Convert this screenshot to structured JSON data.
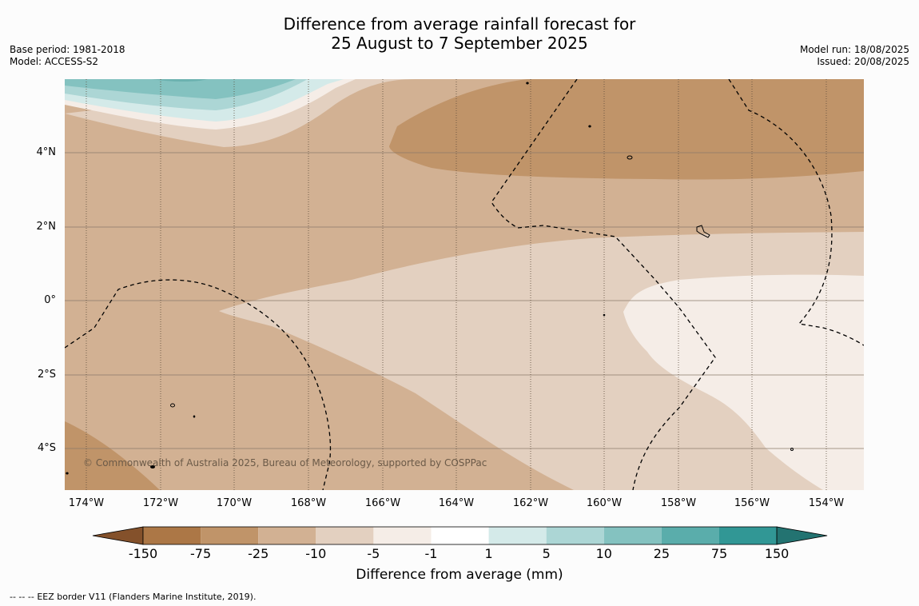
{
  "title": {
    "line1": "Difference from average rainfall forecast for",
    "line2": "25 August to 7 September 2025"
  },
  "meta_left": {
    "base_period": "Base period: 1981-2018",
    "model": "Model: ACCESS-S2"
  },
  "meta_right": {
    "model_run": "Model run: 18/08/2025",
    "issued": "Issued: 20/08/2025"
  },
  "map": {
    "latitude_labels": [
      "4°N",
      "2°N",
      "0°",
      "2°S",
      "4°S"
    ],
    "longitude_labels": [
      "174°W",
      "172°W",
      "170°W",
      "168°W",
      "166°W",
      "164°W",
      "162°W",
      "160°W",
      "158°W",
      "156°W",
      "154°W"
    ],
    "copyright": "© Commonwealth of Australia 2025, Bureau of Meteorology, supported by COSPPac",
    "category_colors": {
      "-75 to -25": "#c09469",
      "-25 to -10": "#d2b193",
      "-10 to -5": "#e3d0c0",
      "-5 to -1": "#f5ede7",
      "1 to 5": "#d4eae9",
      "5 to 10": "#acd6d5",
      "10 to 25": "#84c2c0"
    }
  },
  "colorbar": {
    "ticks": [
      "-150",
      "-75",
      "-25",
      "-10",
      "-5",
      "-1",
      "1",
      "5",
      "10",
      "25",
      "75",
      "150"
    ],
    "colors": [
      "#84512b",
      "#ac7746",
      "#c09469",
      "#d2b193",
      "#e3d0c0",
      "#f5ede7",
      "#ffffff",
      "#d4eae9",
      "#acd6d5",
      "#84c2c0",
      "#5aadab",
      "#319795",
      "#237371"
    ],
    "label": "Difference from average (mm)"
  },
  "footer": {
    "legend_symbol": "--  --  --",
    "text": "EEZ border V11 (Flanders Marine Institute, 2019)."
  }
}
